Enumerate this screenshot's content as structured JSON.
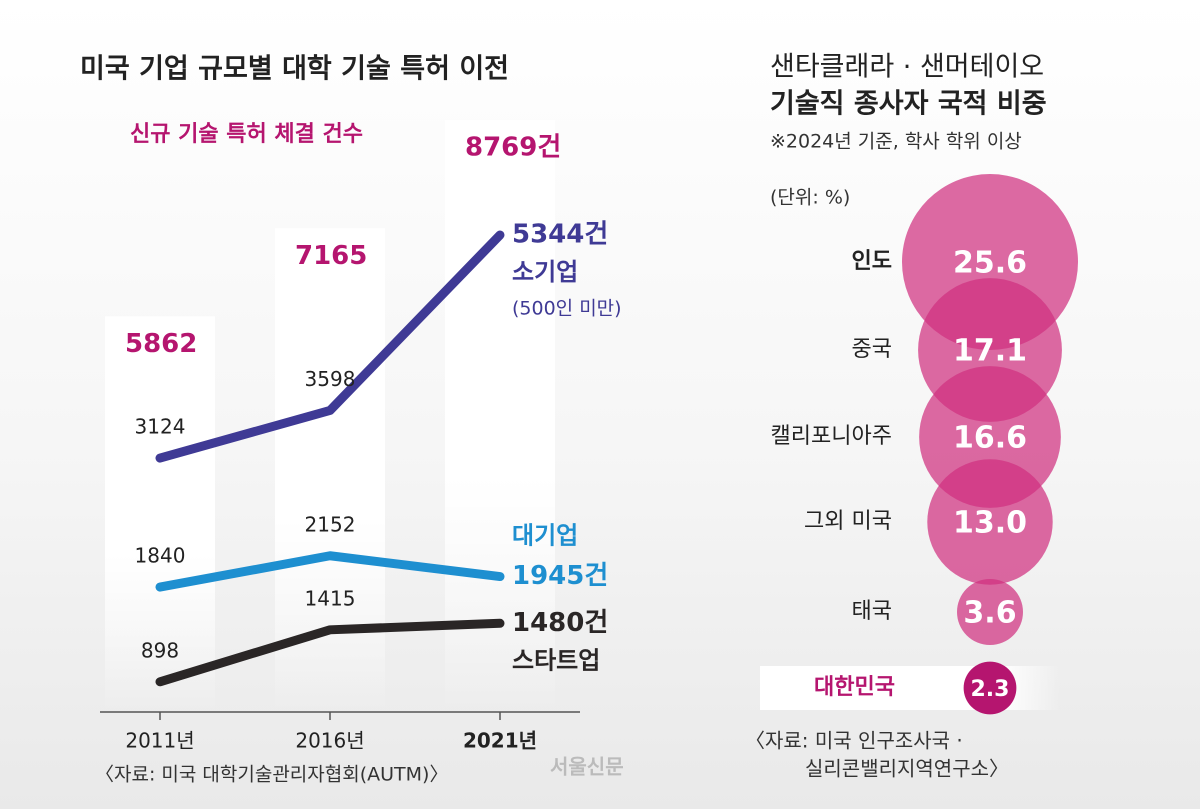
{
  "chart_data": [
    {
      "type": "line",
      "title": "미국 기업 규모별 대학 기술 특허 이전",
      "subtitle": "신규 기술 특허 체결 건수",
      "categories": [
        "2011년",
        "2016년",
        "2021년"
      ],
      "totals": {
        "values": [
          5862,
          7165,
          8769
        ],
        "value_labels": [
          "5862",
          "7165",
          "8769건"
        ],
        "color": "#b5156f"
      },
      "series": [
        {
          "name": "소기업",
          "note": "(500인 미만)",
          "color": "#3f3a95",
          "values": [
            3124,
            3598,
            5344
          ],
          "value_labels": [
            "3124",
            "3598",
            "5344건"
          ]
        },
        {
          "name": "대기업",
          "color": "#1e8fd0",
          "values": [
            1840,
            2152,
            1945
          ],
          "value_labels": [
            "1840",
            "2152",
            "1945건"
          ]
        },
        {
          "name": "스타트업",
          "color": "#2a2626",
          "values": [
            898,
            1415,
            1480
          ],
          "value_labels": [
            "898",
            "1415",
            "1480건"
          ]
        }
      ],
      "source": "〈자료: 미국 대학기술관리자협회(AUTM)〉"
    },
    {
      "type": "bubble",
      "title": [
        "샌타클래라 · 샌머테이오",
        "기술직 종사자 국적 비중"
      ],
      "subtitle": "※2024년 기준, 학사 학위 이상",
      "unit": "(단위: %)",
      "categories": [
        "인도",
        "중국",
        "캘리포니아주",
        "그외 미국",
        "태국",
        "대한민국"
      ],
      "values": [
        25.6,
        17.1,
        16.6,
        13.0,
        3.6,
        2.3
      ],
      "value_labels": [
        "25.6",
        "17.1",
        "16.6",
        "13.0",
        "3.6",
        "2.3"
      ],
      "color": "#d0307f",
      "highlight_color": "#b5156f",
      "source": [
        "〈자료: 미국 인구조사국 ·",
        "실리콘밸리지역연구소〉"
      ]
    }
  ],
  "logo": "서울신문"
}
